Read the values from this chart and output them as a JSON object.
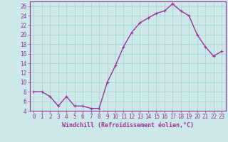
{
  "x": [
    0,
    1,
    2,
    3,
    4,
    5,
    6,
    7,
    8,
    9,
    10,
    11,
    12,
    13,
    14,
    15,
    16,
    17,
    18,
    19,
    20,
    21,
    22,
    23
  ],
  "y": [
    8,
    8,
    7,
    5,
    7,
    5,
    5,
    4.5,
    4.5,
    10,
    13.5,
    17.5,
    20.5,
    22.5,
    23.5,
    24.5,
    25,
    26.5,
    25,
    24,
    20,
    17.5,
    15.5,
    16.5
  ],
  "line_color": "#993399",
  "marker_color": "#993399",
  "bg_color": "#cce8e8",
  "grid_color": "#aacece",
  "xlabel": "Windchill (Refroidissement éolien,°C)",
  "ylim": [
    4,
    27
  ],
  "yticks": [
    4,
    6,
    8,
    10,
    12,
    14,
    16,
    18,
    20,
    22,
    24,
    26
  ],
  "xticks": [
    0,
    1,
    2,
    3,
    4,
    5,
    6,
    7,
    8,
    9,
    10,
    11,
    12,
    13,
    14,
    15,
    16,
    17,
    18,
    19,
    20,
    21,
    22,
    23
  ],
  "label_fontsize": 6,
  "tick_fontsize": 5.5,
  "line_width": 1.0,
  "marker_size": 3
}
